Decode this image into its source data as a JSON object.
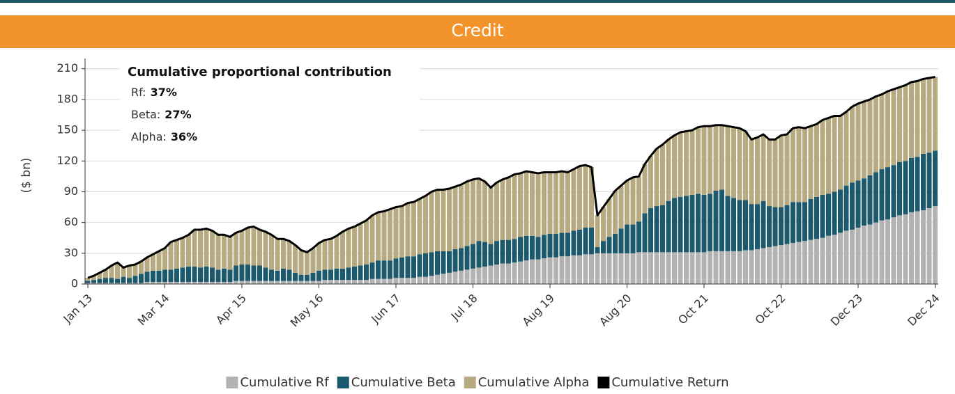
{
  "chart_data": {
    "type": "stacked-bar-line",
    "title": "Credit",
    "y_label": "($ bn)",
    "ylim": [
      0,
      220
    ],
    "yticks": [
      0,
      30,
      60,
      90,
      120,
      150,
      180,
      210
    ],
    "grid": true,
    "legend": "bottom",
    "categories": [
      "Jan 13",
      null,
      null,
      null,
      null,
      null,
      null,
      null,
      null,
      null,
      null,
      null,
      null,
      "Mar 14",
      null,
      null,
      null,
      null,
      null,
      null,
      null,
      null,
      null,
      null,
      null,
      null,
      "Apr 15",
      null,
      null,
      null,
      null,
      null,
      null,
      null,
      null,
      null,
      null,
      null,
      null,
      "May 16",
      null,
      null,
      null,
      null,
      null,
      null,
      null,
      null,
      null,
      null,
      null,
      null,
      "Jun 17",
      null,
      null,
      null,
      null,
      null,
      null,
      null,
      null,
      null,
      null,
      null,
      null,
      "Jul 18",
      null,
      null,
      null,
      null,
      null,
      null,
      null,
      null,
      null,
      null,
      null,
      null,
      "Aug 19",
      null,
      null,
      null,
      null,
      null,
      null,
      null,
      null,
      null,
      null,
      null,
      null,
      "Aug 20",
      null,
      null,
      null,
      null,
      null,
      null,
      null,
      null,
      null,
      null,
      null,
      null,
      "Oct 21",
      null,
      null,
      null,
      null,
      null,
      null,
      null,
      null,
      null,
      null,
      null,
      null,
      "Oct 22",
      null,
      null,
      null,
      null,
      null,
      null,
      null,
      null,
      null,
      null,
      null,
      null,
      "Dec 23",
      null,
      null,
      null,
      null,
      null,
      null,
      null,
      null,
      null,
      null,
      null,
      null,
      "Dec 24"
    ],
    "series": [
      {
        "name": "Cumulative Rf",
        "color": "#b3b3b3",
        "values": [
          1,
          1,
          1,
          1,
          1,
          1,
          1,
          1,
          1,
          1,
          2,
          2,
          2,
          2,
          2,
          2,
          2,
          2,
          2,
          2,
          2,
          2,
          2,
          2,
          2,
          3,
          3,
          3,
          3,
          3,
          3,
          3,
          3,
          3,
          3,
          3,
          3,
          3,
          3,
          3,
          4,
          4,
          4,
          4,
          4,
          4,
          4,
          4,
          5,
          5,
          5,
          5,
          6,
          6,
          6,
          6,
          7,
          7,
          8,
          9,
          10,
          11,
          12,
          13,
          14,
          15,
          16,
          17,
          18,
          19,
          20,
          20,
          21,
          22,
          23,
          24,
          24,
          25,
          26,
          26,
          27,
          27,
          28,
          28,
          29,
          29,
          30,
          30,
          30,
          30,
          30,
          30,
          30,
          31,
          31,
          31,
          31,
          31,
          31,
          31,
          31,
          31,
          31,
          31,
          31,
          32,
          32,
          32,
          32,
          32,
          32,
          33,
          33,
          34,
          35,
          36,
          37,
          38,
          39,
          40,
          41,
          42,
          43,
          44,
          45,
          47,
          48,
          50,
          52,
          53,
          55,
          57,
          58,
          60,
          62,
          63,
          65,
          67,
          68,
          70,
          71,
          72,
          74,
          76
        ]
      },
      {
        "name": "Cumulative Beta",
        "color": "#1b5a6e",
        "values": [
          2,
          3,
          4,
          5,
          5,
          4,
          6,
          5,
          7,
          9,
          10,
          11,
          11,
          12,
          12,
          13,
          14,
          15,
          15,
          14,
          15,
          14,
          12,
          13,
          12,
          15,
          16,
          16,
          15,
          15,
          13,
          11,
          10,
          12,
          11,
          8,
          6,
          6,
          8,
          10,
          10,
          10,
          11,
          11,
          12,
          13,
          14,
          15,
          16,
          18,
          18,
          18,
          19,
          20,
          21,
          21,
          22,
          23,
          23,
          23,
          22,
          21,
          22,
          22,
          23,
          24,
          26,
          24,
          21,
          23,
          23,
          23,
          23,
          24,
          24,
          23,
          22,
          23,
          23,
          23,
          23,
          23,
          24,
          25,
          26,
          26,
          6,
          12,
          16,
          19,
          24,
          28,
          28,
          30,
          38,
          43,
          45,
          46,
          50,
          53,
          54,
          55,
          56,
          57,
          56,
          56,
          59,
          60,
          54,
          52,
          50,
          49,
          45,
          44,
          46,
          40,
          38,
          37,
          38,
          40,
          39,
          38,
          40,
          41,
          42,
          41,
          42,
          42,
          44,
          46,
          46,
          46,
          48,
          49,
          50,
          51,
          51,
          52,
          52,
          53,
          53,
          55,
          54,
          54
        ]
      },
      {
        "name": "Cumulative Alpha",
        "color": "#b7aa80",
        "values": [
          3,
          4,
          6,
          8,
          12,
          16,
          9,
          12,
          11,
          12,
          14,
          16,
          19,
          21,
          27,
          28,
          29,
          31,
          36,
          37,
          37,
          36,
          34,
          33,
          32,
          32,
          33,
          36,
          38,
          35,
          35,
          34,
          31,
          29,
          28,
          27,
          24,
          22,
          24,
          27,
          29,
          30,
          32,
          36,
          38,
          39,
          41,
          43,
          46,
          47,
          48,
          50,
          50,
          50,
          52,
          53,
          54,
          56,
          59,
          60,
          60,
          61,
          61,
          62,
          63,
          63,
          61,
          59,
          55,
          57,
          59,
          61,
          63,
          62,
          63,
          62,
          62,
          61,
          60,
          60,
          60,
          59,
          60,
          62,
          61,
          59,
          31,
          33,
          37,
          42,
          42,
          43,
          46,
          44,
          48,
          51,
          56,
          59,
          60,
          61,
          63,
          63,
          63,
          65,
          67,
          66,
          64,
          63,
          68,
          69,
          70,
          67,
          63,
          65,
          65,
          65,
          66,
          70,
          69,
          72,
          73,
          72,
          71,
          71,
          73,
          74,
          74,
          72,
          72,
          74,
          75,
          75,
          74,
          74,
          73,
          74,
          74,
          73,
          74,
          74,
          74,
          73,
          73,
          72
        ]
      }
    ],
    "line": {
      "name": "Cumulative Return",
      "color": "#000000",
      "values": [
        6,
        8,
        11,
        14,
        18,
        21,
        16,
        18,
        19,
        22,
        26,
        29,
        32,
        35,
        41,
        43,
        45,
        48,
        53,
        53,
        54,
        52,
        48,
        48,
        46,
        50,
        52,
        55,
        56,
        53,
        51,
        48,
        44,
        44,
        42,
        38,
        33,
        31,
        35,
        40,
        43,
        44,
        47,
        51,
        54,
        56,
        59,
        62,
        67,
        70,
        71,
        73,
        75,
        76,
        79,
        80,
        83,
        86,
        90,
        92,
        92,
        93,
        95,
        97,
        100,
        102,
        103,
        100,
        94,
        99,
        102,
        104,
        107,
        108,
        110,
        109,
        108,
        109,
        109,
        109,
        110,
        109,
        112,
        115,
        116,
        114,
        67,
        75,
        83,
        91,
        96,
        101,
        104,
        105,
        117,
        125,
        132,
        136,
        141,
        145,
        148,
        149,
        150,
        153,
        154,
        154,
        155,
        155,
        154,
        153,
        152,
        149,
        141,
        143,
        146,
        141,
        141,
        145,
        146,
        152,
        153,
        152,
        154,
        156,
        160,
        162,
        164,
        164,
        168,
        173,
        176,
        178,
        180,
        183,
        185,
        188,
        190,
        192,
        194,
        197,
        198,
        200,
        201,
        202
      ]
    },
    "annotation": {
      "title": "Cumulative proportional contribution",
      "labels": [
        "Rf:",
        "Beta:",
        "Alpha:"
      ],
      "values": [
        37,
        27,
        36
      ],
      "value_labels": [
        "37%",
        "27%",
        "36%"
      ]
    }
  }
}
